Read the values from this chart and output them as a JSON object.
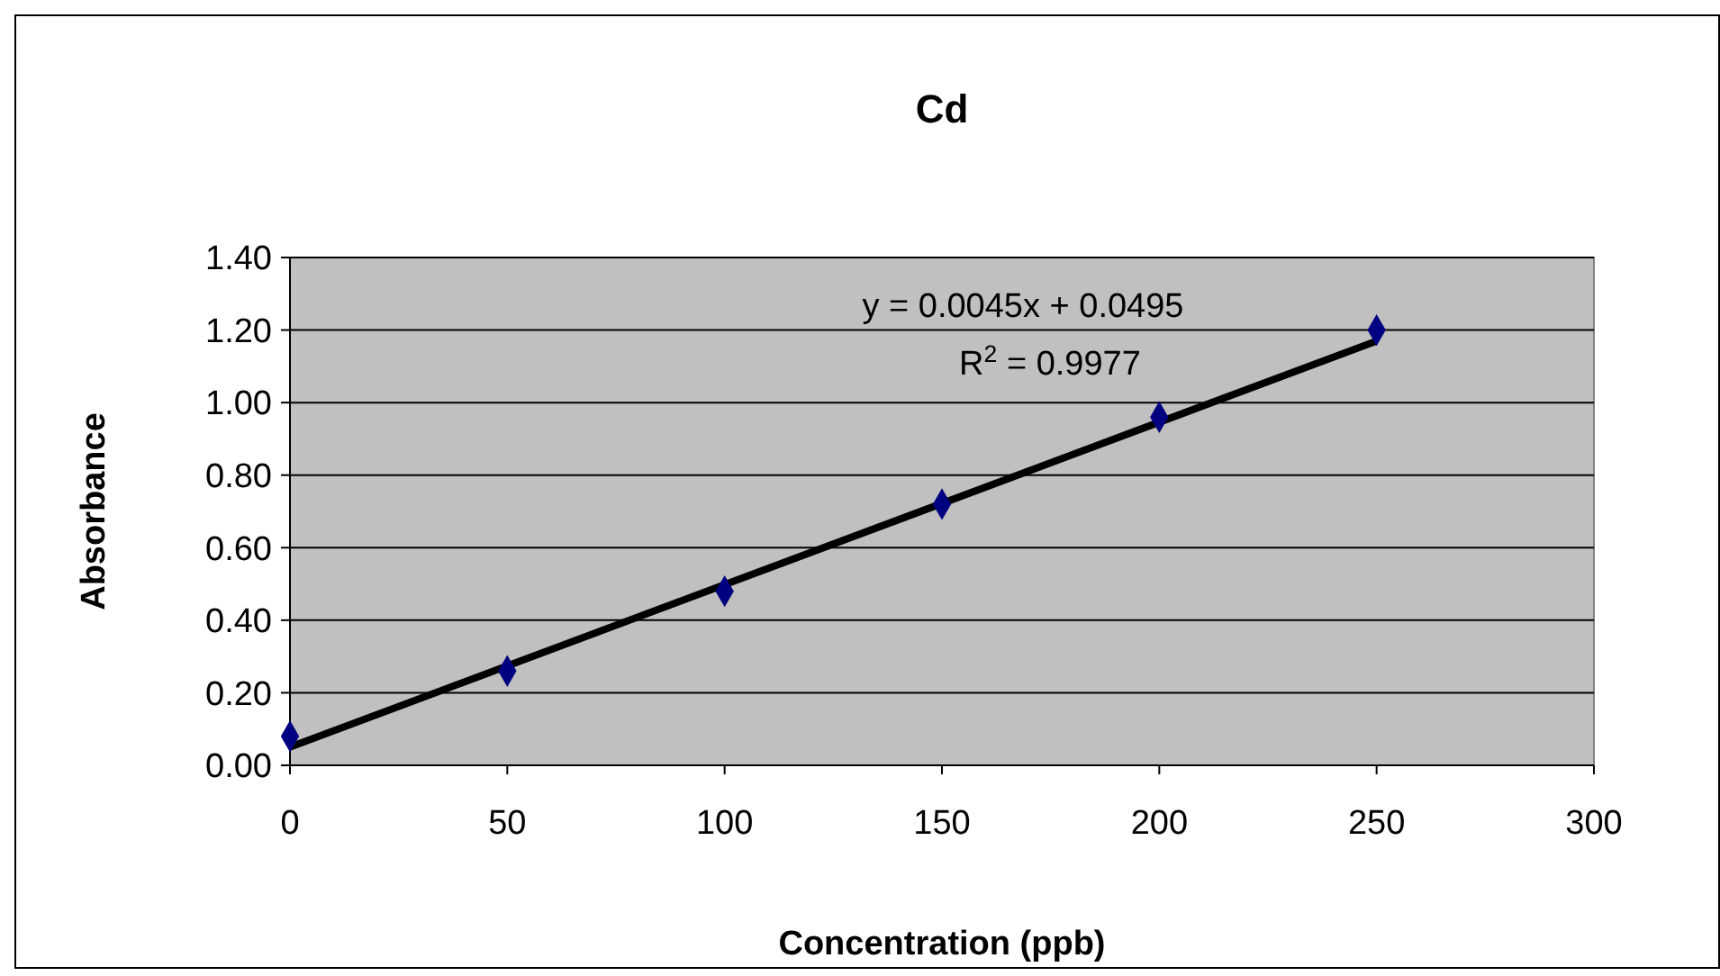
{
  "chart_data": {
    "type": "scatter",
    "title": "Cd",
    "xlabel": "Concentration (ppb)",
    "ylabel": "Absorbance",
    "x": [
      0,
      50,
      100,
      150,
      200,
      250
    ],
    "series": [
      {
        "type": "scatter",
        "color": "#000080",
        "marker": "diamond",
        "values": [
          0.08,
          0.26,
          0.48,
          0.72,
          0.96,
          1.2
        ]
      },
      {
        "type": "line",
        "color": "#000000",
        "marker": "none",
        "line_style": "solid",
        "x": [
          0,
          250
        ],
        "values": [
          0.05,
          1.17
        ]
      }
    ],
    "annotations": [
      "y = 0.0045x + 0.0495",
      "R$^{2}$ = 0.9977"
    ],
    "xlim": [
      0,
      300
    ],
    "xticks": [
      0,
      50,
      100,
      150,
      200,
      250,
      300
    ],
    "ylim": [
      0,
      1.4
    ],
    "yticks": [
      {
        "value": 0,
        "label": "0.00"
      },
      {
        "value": 0.2,
        "label": "0.20"
      },
      {
        "value": 0.4,
        "label": "0.40"
      },
      {
        "value": 0.6,
        "label": "0.60"
      },
      {
        "value": 0.8,
        "label": "0.80"
      },
      {
        "value": 1,
        "label": "1.00"
      },
      {
        "value": 1.2,
        "label": "1.20"
      },
      {
        "value": 1.4,
        "label": "1.40"
      }
    ],
    "grid": "y",
    "legend": false
  }
}
